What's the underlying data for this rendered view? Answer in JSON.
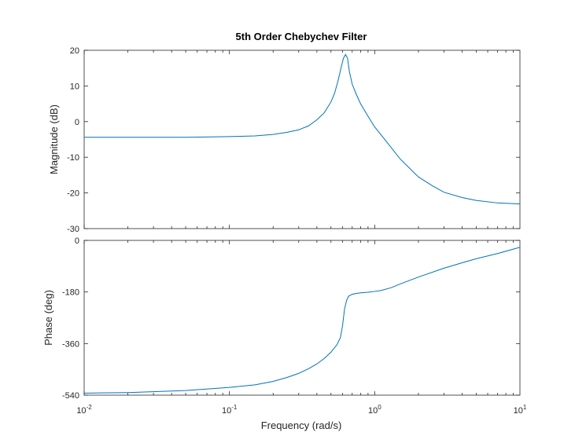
{
  "chart_data": {
    "type": "line",
    "title": "5th Order Chebychev Filter",
    "xlabel": "Frequency  (rad/s)",
    "x_scale": "log",
    "xlim": [
      0.01,
      10
    ],
    "x_ticks": [
      {
        "value": 0.01,
        "base": "10",
        "exp": "-2"
      },
      {
        "value": 0.1,
        "base": "10",
        "exp": "-1"
      },
      {
        "value": 1,
        "base": "10",
        "exp": "0"
      },
      {
        "value": 10,
        "base": "10",
        "exp": "1"
      }
    ],
    "line_color": "#0072bd",
    "grid": false,
    "panels": [
      {
        "ylabel": "Magnitude (dB)",
        "ylim": [
          -30,
          20
        ],
        "y_ticks": [
          20,
          10,
          0,
          -10,
          -20,
          -30
        ],
        "series": [
          {
            "x": [
              0.01,
              0.02,
              0.05,
              0.1,
              0.15,
              0.2,
              0.25,
              0.3,
              0.35,
              0.4,
              0.45,
              0.5,
              0.53,
              0.56,
              0.59,
              0.61,
              0.63,
              0.65,
              0.67,
              0.7,
              0.75,
              0.8,
              0.9,
              1.0,
              1.2,
              1.5,
              2.0,
              2.5,
              3.0,
              4.0,
              5.0,
              7.0,
              10.0
            ],
            "y": [
              -4.4,
              -4.4,
              -4.4,
              -4.2,
              -4.0,
              -3.6,
              -3.0,
              -2.3,
              -1.2,
              0.5,
              2.5,
              5.5,
              8.0,
              11.5,
              15.5,
              17.8,
              18.8,
              17.8,
              14.0,
              10.5,
              7.5,
              5.0,
              1.5,
              -1.5,
              -5.5,
              -10.5,
              -15.5,
              -18.0,
              -19.8,
              -21.3,
              -22.1,
              -22.8,
              -23.1
            ]
          }
        ]
      },
      {
        "ylabel": "Phase (deg)",
        "ylim": [
          -540,
          0
        ],
        "y_ticks": [
          0,
          -180,
          -360,
          -540
        ],
        "series": [
          {
            "x": [
              0.01,
              0.02,
              0.05,
              0.1,
              0.15,
              0.2,
              0.25,
              0.3,
              0.35,
              0.4,
              0.45,
              0.5,
              0.55,
              0.58,
              0.6,
              0.62,
              0.64,
              0.66,
              0.7,
              0.75,
              0.8,
              0.9,
              1.0,
              1.1,
              1.3,
              1.5,
              2.0,
              3.0,
              4.0,
              5.0,
              7.0,
              10.0
            ],
            "y": [
              -533,
              -531,
              -524,
              -513,
              -504,
              -492,
              -478,
              -464,
              -448,
              -431,
              -412,
              -390,
              -364,
              -340,
              -300,
              -240,
              -210,
              -195,
              -188,
              -185,
              -183,
              -181,
              -178,
              -175,
              -165,
              -152,
              -128,
              -97,
              -78,
              -64,
              -46,
              -24
            ]
          }
        ]
      }
    ]
  }
}
